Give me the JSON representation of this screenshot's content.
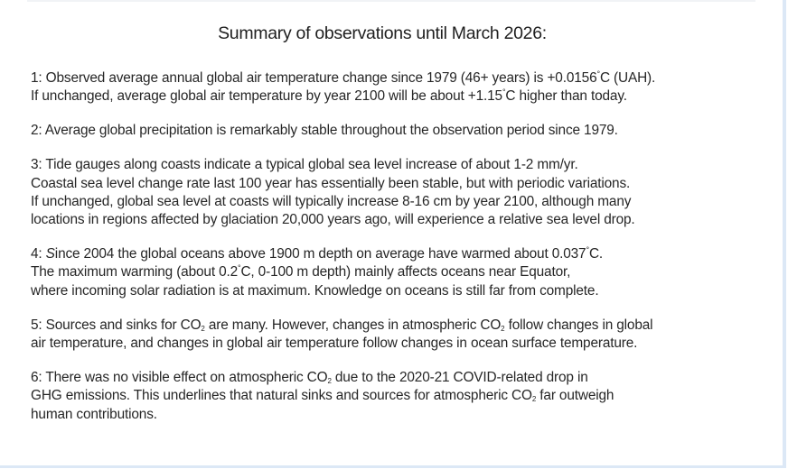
{
  "title": "Summary of observations until March 2026:",
  "paragraphs": [
    {
      "number": "1",
      "lines": [
        {
          "a": "1: Observed average annual global air temperature change since 1979 (46+ years) is +0.0156",
          "deg": "°",
          "b": "C (UAH)."
        },
        {
          "a": "If unchanged, average global air temperature by year 2100 will be about +1.15",
          "deg": "°",
          "b": "C higher than today."
        }
      ]
    },
    {
      "number": "2",
      "lines": [
        {
          "a": "2: Average global precipitation is remarkably stable throughout the observation period since 1979."
        }
      ]
    },
    {
      "number": "3",
      "lines": [
        {
          "a": "3: Tide gauges along coasts indicate a typical global sea level increase of about 1-2 mm/yr."
        },
        {
          "a": "Coastal sea level change rate last 100 year has essentially been stable, but with periodic variations."
        },
        {
          "a": "If unchanged, global sea level at coasts will typically increase 8-16 cm by year 2100, although many"
        },
        {
          "a": "locations in regions affected by glaciation 20,000 years ago, will experience a relative sea level drop."
        }
      ]
    },
    {
      "number": "4",
      "lines": [
        {
          "prefix": "4: ",
          "italic": "S",
          "a": "ince 2004 the global oceans above 1900 m depth on average have warmed about 0.037",
          "deg": "°",
          "b": "C."
        },
        {
          "a": "The maximum warming (about 0.2",
          "deg": "°",
          "b": "C, 0-100 m depth) mainly affects oceans near Equator,"
        },
        {
          "a": "where incoming solar radiation is at maximum. Knowledge on oceans is still far from complete."
        }
      ]
    },
    {
      "number": "5",
      "lines": [
        {
          "a": "5: Sources and sinks for CO",
          "sub": "2",
          "b": " are many. However, changes in atmospheric CO",
          "sub2": "2",
          "c": " follow changes in global"
        },
        {
          "a": "air temperature, and changes in global air temperature follow changes in ocean surface temperature."
        }
      ]
    },
    {
      "number": "6",
      "lines": [
        {
          "a": "6: There was no visible effect on atmospheric CO",
          "sub": "2",
          "b": " due to the 2020-21 COVID-related drop in"
        },
        {
          "a": "GHG emissions. This underlines that natural sinks and sources for atmospheric CO",
          "sub": "2",
          "b": " far outweigh"
        },
        {
          "a": "human contributions."
        }
      ]
    }
  ],
  "colors": {
    "text": "#262626",
    "border": "#dce8f6",
    "background": "#ffffff"
  }
}
